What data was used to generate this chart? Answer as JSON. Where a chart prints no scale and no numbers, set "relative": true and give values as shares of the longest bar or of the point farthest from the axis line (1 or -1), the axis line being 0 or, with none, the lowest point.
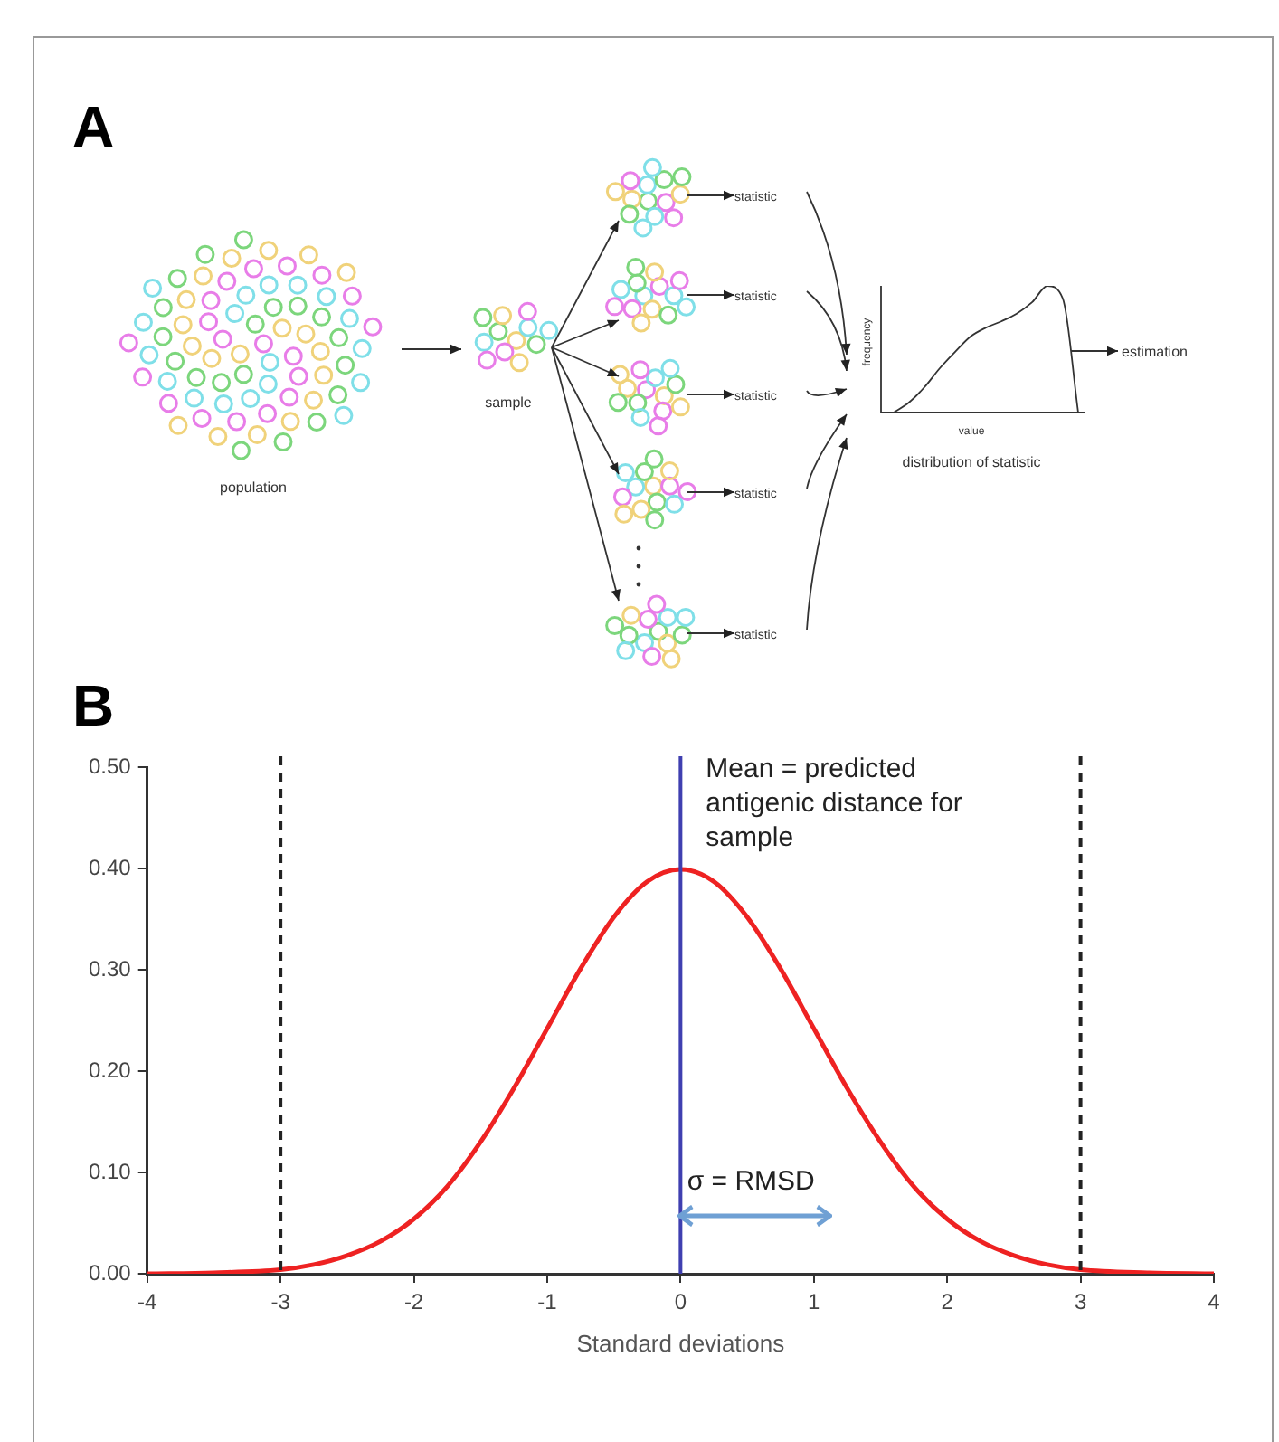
{
  "chart_data": [
    {
      "type": "other",
      "title": "A",
      "annotations": [
        "population",
        "sample",
        "statistic",
        "statistic",
        "statistic",
        "statistic",
        "statistic",
        "estimation"
      ]
    },
    {
      "type": "line",
      "relative": true,
      "xlabel": "value",
      "ylabel": "frequency",
      "annotations": [
        "distribution of statistic"
      ],
      "categories": [
        null,
        null,
        null,
        null,
        null,
        null,
        null,
        null,
        null,
        null,
        null,
        null,
        null
      ],
      "series": [
        {
          "color": "#333333",
          "values": [
            0,
            0.08,
            0.2,
            0.35,
            0.48,
            0.6,
            0.67,
            0.72,
            0.78,
            0.87,
            1,
            0.9,
            0
          ]
        }
      ],
      "grid": false,
      "legend": false,
      "marker": "none",
      "line_style": "solid"
    },
    {
      "type": "line",
      "title": "B",
      "xlabel": "Standard deviations",
      "xlim": [
        -4,
        4
      ],
      "xticks": [
        -4,
        -3,
        -2,
        -1,
        0,
        1,
        2,
        3,
        4
      ],
      "ylim": [
        0,
        0.5
      ],
      "yticks": [
        {
          "value": 0,
          "label": "0.00"
        },
        {
          "value": 0.1,
          "label": "0.10"
        },
        {
          "value": 0.2,
          "label": "0.20"
        },
        {
          "value": 0.3,
          "label": "0.30"
        },
        {
          "value": 0.4,
          "label": "0.40"
        },
        {
          "value": 0.5,
          "label": "0.50"
        }
      ],
      "x": [
        -4,
        -3.5,
        -3,
        -2.75,
        -2.5,
        -2.25,
        -2,
        -1.75,
        -1.5,
        -1.25,
        -1,
        -0.75,
        -0.5,
        -0.25,
        0,
        0.25,
        0.5,
        0.75,
        1,
        1.25,
        1.5,
        1.75,
        2,
        2.25,
        2.5,
        2.75,
        3,
        3.5,
        4
      ],
      "series": [
        {
          "color": "#ee2222",
          "values": [
            0,
            0.001,
            0.004,
            0.009,
            0.018,
            0.032,
            0.054,
            0.086,
            0.13,
            0.183,
            0.242,
            0.301,
            0.352,
            0.387,
            0.399,
            0.387,
            0.352,
            0.301,
            0.242,
            0.183,
            0.13,
            0.086,
            0.054,
            0.032,
            0.018,
            0.009,
            0.004,
            0.001,
            0
          ]
        }
      ],
      "ref_lines": [
        {
          "axis": "x",
          "value": -3,
          "color": "#222222",
          "line_style": "dashed"
        },
        {
          "axis": "x",
          "value": 3,
          "color": "#222222",
          "line_style": "dashed"
        },
        {
          "axis": "x",
          "value": 0,
          "color": "#3f3fb0",
          "line_style": "solid",
          "label": "Mean = predicted antigenic distance for sample"
        }
      ],
      "annotations": [
        {
          "text": "σ = RMSD",
          "x": 0.05,
          "y": 0.09
        }
      ],
      "grid": false,
      "legend": false,
      "marker": "none",
      "line_style": "solid"
    }
  ]
}
